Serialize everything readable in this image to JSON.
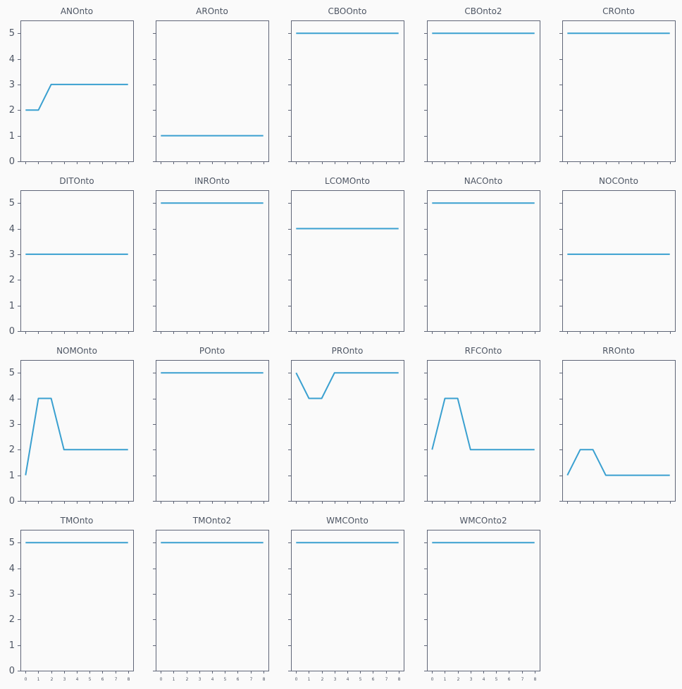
{
  "chart_data": {
    "type": "line",
    "x": [
      0,
      1,
      2,
      3,
      4,
      5,
      6,
      7,
      8
    ],
    "xlim": [
      -0.4,
      8.4
    ],
    "ylim": [
      0,
      5.5
    ],
    "yticks": [
      0,
      1,
      2,
      3,
      4,
      5
    ],
    "x_tick_labels_shown_on": "bottom-row",
    "y_tick_labels_shown_on": "first-column",
    "line_color": "#3aa0d0",
    "panels": [
      {
        "title": "ANOnto",
        "values": [
          2,
          2,
          3,
          3,
          3,
          3,
          3,
          3,
          3
        ]
      },
      {
        "title": "AROnto",
        "values": [
          1,
          1,
          1,
          1,
          1,
          1,
          1,
          1,
          1
        ]
      },
      {
        "title": "CBOOnto",
        "values": [
          5,
          5,
          5,
          5,
          5,
          5,
          5,
          5,
          5
        ]
      },
      {
        "title": "CBOnto2",
        "values": [
          5,
          5,
          5,
          5,
          5,
          5,
          5,
          5,
          5
        ]
      },
      {
        "title": "CROnto",
        "values": [
          5,
          5,
          5,
          5,
          5,
          5,
          5,
          5,
          5
        ]
      },
      {
        "title": "DITOnto",
        "values": [
          3,
          3,
          3,
          3,
          3,
          3,
          3,
          3,
          3
        ]
      },
      {
        "title": "INROnto",
        "values": [
          5,
          5,
          5,
          5,
          5,
          5,
          5,
          5,
          5
        ]
      },
      {
        "title": "LCOMOnto",
        "values": [
          4,
          4,
          4,
          4,
          4,
          4,
          4,
          4,
          4
        ]
      },
      {
        "title": "NACOnto",
        "values": [
          5,
          5,
          5,
          5,
          5,
          5,
          5,
          5,
          5
        ]
      },
      {
        "title": "NOCOnto",
        "values": [
          3,
          3,
          3,
          3,
          3,
          3,
          3,
          3,
          3
        ]
      },
      {
        "title": "NOMOnto",
        "values": [
          1,
          4,
          4,
          2,
          2,
          2,
          2,
          2,
          2
        ]
      },
      {
        "title": "POnto",
        "values": [
          5,
          5,
          5,
          5,
          5,
          5,
          5,
          5,
          5
        ]
      },
      {
        "title": "PROnto",
        "values": [
          5,
          4,
          4,
          5,
          5,
          5,
          5,
          5,
          5
        ]
      },
      {
        "title": "RFCOnto",
        "values": [
          2,
          4,
          4,
          2,
          2,
          2,
          2,
          2,
          2
        ]
      },
      {
        "title": "RROnto",
        "values": [
          1,
          2,
          2,
          1,
          1,
          1,
          1,
          1,
          1
        ]
      },
      {
        "title": "TMOnto",
        "values": [
          5,
          5,
          5,
          5,
          5,
          5,
          5,
          5,
          5
        ]
      },
      {
        "title": "TMOnto2",
        "values": [
          5,
          5,
          5,
          5,
          5,
          5,
          5,
          5,
          5
        ]
      },
      {
        "title": "WMCOnto",
        "values": [
          5,
          5,
          5,
          5,
          5,
          5,
          5,
          5,
          5
        ]
      },
      {
        "title": "WMCOnto2",
        "values": [
          5,
          5,
          5,
          5,
          5,
          5,
          5,
          5,
          5
        ]
      }
    ]
  }
}
